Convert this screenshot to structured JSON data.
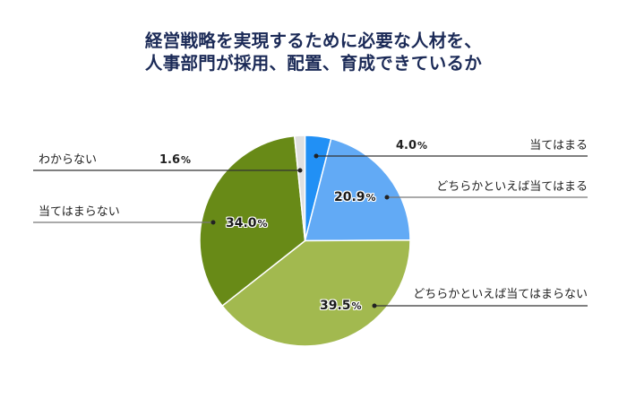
{
  "title": {
    "line1": "経営戦略を実現するために必要な人材を、",
    "line2": "人事部門が採用、配置、育成できているか"
  },
  "chart_data": {
    "type": "pie",
    "title": "経営戦略を実現するために必要な人材を、人事部門が採用、配置、育成できているか",
    "categories": [
      "当てはまる",
      "どちらかといえば当てはまる",
      "どちらかといえば当てはまらない",
      "当てはまらない",
      "わからない"
    ],
    "values": [
      4.0,
      20.9,
      39.5,
      34.0,
      1.6
    ],
    "unit": "%",
    "colors": [
      "#2190f5",
      "#62aaf5",
      "#a2b94f",
      "#688a17",
      "#e0e0e0"
    ],
    "start_angle": "12 o'clock, clockwise",
    "legend_position": "leader-line labels"
  },
  "labels": {
    "s0": {
      "name": "当てはまる",
      "value": "4.0",
      "sym": "%"
    },
    "s1": {
      "name": "どちらかといえば当てはまる",
      "value": "20.9",
      "sym": "%"
    },
    "s2": {
      "name": "どちらかといえば当てはまらない",
      "value": "39.5",
      "sym": "%"
    },
    "s3": {
      "name": "当てはまらない",
      "value": "34.0",
      "sym": "%"
    },
    "s4": {
      "name": "わからない",
      "value": "1.6",
      "sym": "%"
    }
  }
}
